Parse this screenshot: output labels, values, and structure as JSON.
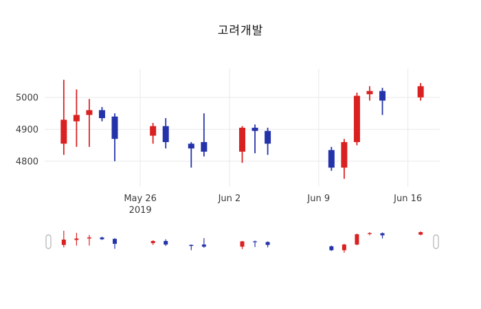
{
  "colors": {
    "background": "#ffffff",
    "grid": "#e9e9e9",
    "axis_text": "#3a3a3a",
    "title_text": "#111111",
    "slider_handle_fill": "#ffffff",
    "slider_handle_border": "#b0b0b0"
  },
  "chart_data": {
    "type": "candlestick",
    "title": "고려개발",
    "xlabel": "",
    "ylabel": "",
    "legend": "none",
    "grid": "on",
    "increasing_color": "#d92121",
    "decreasing_color": "#2433aa",
    "y_ticks": [
      4800,
      4900,
      5000
    ],
    "y_range": [
      4720,
      5090
    ],
    "epoch": "2019-05-20",
    "x_range_days": [
      -1.5,
      29.5
    ],
    "x_ticks": [
      {
        "date": "2019-05-26",
        "label": "May 26",
        "sub": "2019"
      },
      {
        "date": "2019-06-02",
        "label": "Jun 2"
      },
      {
        "date": "2019-06-09",
        "label": "Jun 9"
      },
      {
        "date": "2019-06-16",
        "label": "Jun 16"
      }
    ],
    "series": [
      {
        "date": "2019-05-20",
        "open": 4855,
        "high": 5055,
        "low": 4820,
        "close": 4930
      },
      {
        "date": "2019-05-21",
        "open": 4925,
        "high": 5025,
        "low": 4845,
        "close": 4945
      },
      {
        "date": "2019-05-22",
        "open": 4945,
        "high": 4995,
        "low": 4845,
        "close": 4960
      },
      {
        "date": "2019-05-23",
        "open": 4960,
        "high": 4970,
        "low": 4925,
        "close": 4935
      },
      {
        "date": "2019-05-24",
        "open": 4940,
        "high": 4950,
        "low": 4800,
        "close": 4870
      },
      {
        "date": "2019-05-27",
        "open": 4880,
        "high": 4920,
        "low": 4855,
        "close": 4910
      },
      {
        "date": "2019-05-28",
        "open": 4910,
        "high": 4935,
        "low": 4840,
        "close": 4860
      },
      {
        "date": "2019-05-30",
        "open": 4855,
        "high": 4860,
        "low": 4780,
        "close": 4840
      },
      {
        "date": "2019-05-31",
        "open": 4860,
        "high": 4950,
        "low": 4815,
        "close": 4830
      },
      {
        "date": "2019-06-03",
        "open": 4830,
        "high": 4910,
        "low": 4795,
        "close": 4905
      },
      {
        "date": "2019-06-04",
        "open": 4905,
        "high": 4915,
        "low": 4825,
        "close": 4895
      },
      {
        "date": "2019-06-05",
        "open": 4895,
        "high": 4905,
        "low": 4820,
        "close": 4855
      },
      {
        "date": "2019-06-10",
        "open": 4835,
        "high": 4845,
        "low": 4770,
        "close": 4780
      },
      {
        "date": "2019-06-11",
        "open": 4780,
        "high": 4870,
        "low": 4745,
        "close": 4860
      },
      {
        "date": "2019-06-12",
        "open": 4860,
        "high": 5015,
        "low": 4850,
        "close": 5005
      },
      {
        "date": "2019-06-13",
        "open": 5010,
        "high": 5035,
        "low": 4990,
        "close": 5020
      },
      {
        "date": "2019-06-14",
        "open": 5020,
        "high": 5030,
        "low": 4945,
        "close": 4990
      },
      {
        "date": "2019-06-17",
        "open": 5000,
        "high": 5045,
        "low": 4990,
        "close": 5035
      }
    ],
    "rangeslider": {
      "visible": true,
      "selected_range": "full"
    }
  }
}
